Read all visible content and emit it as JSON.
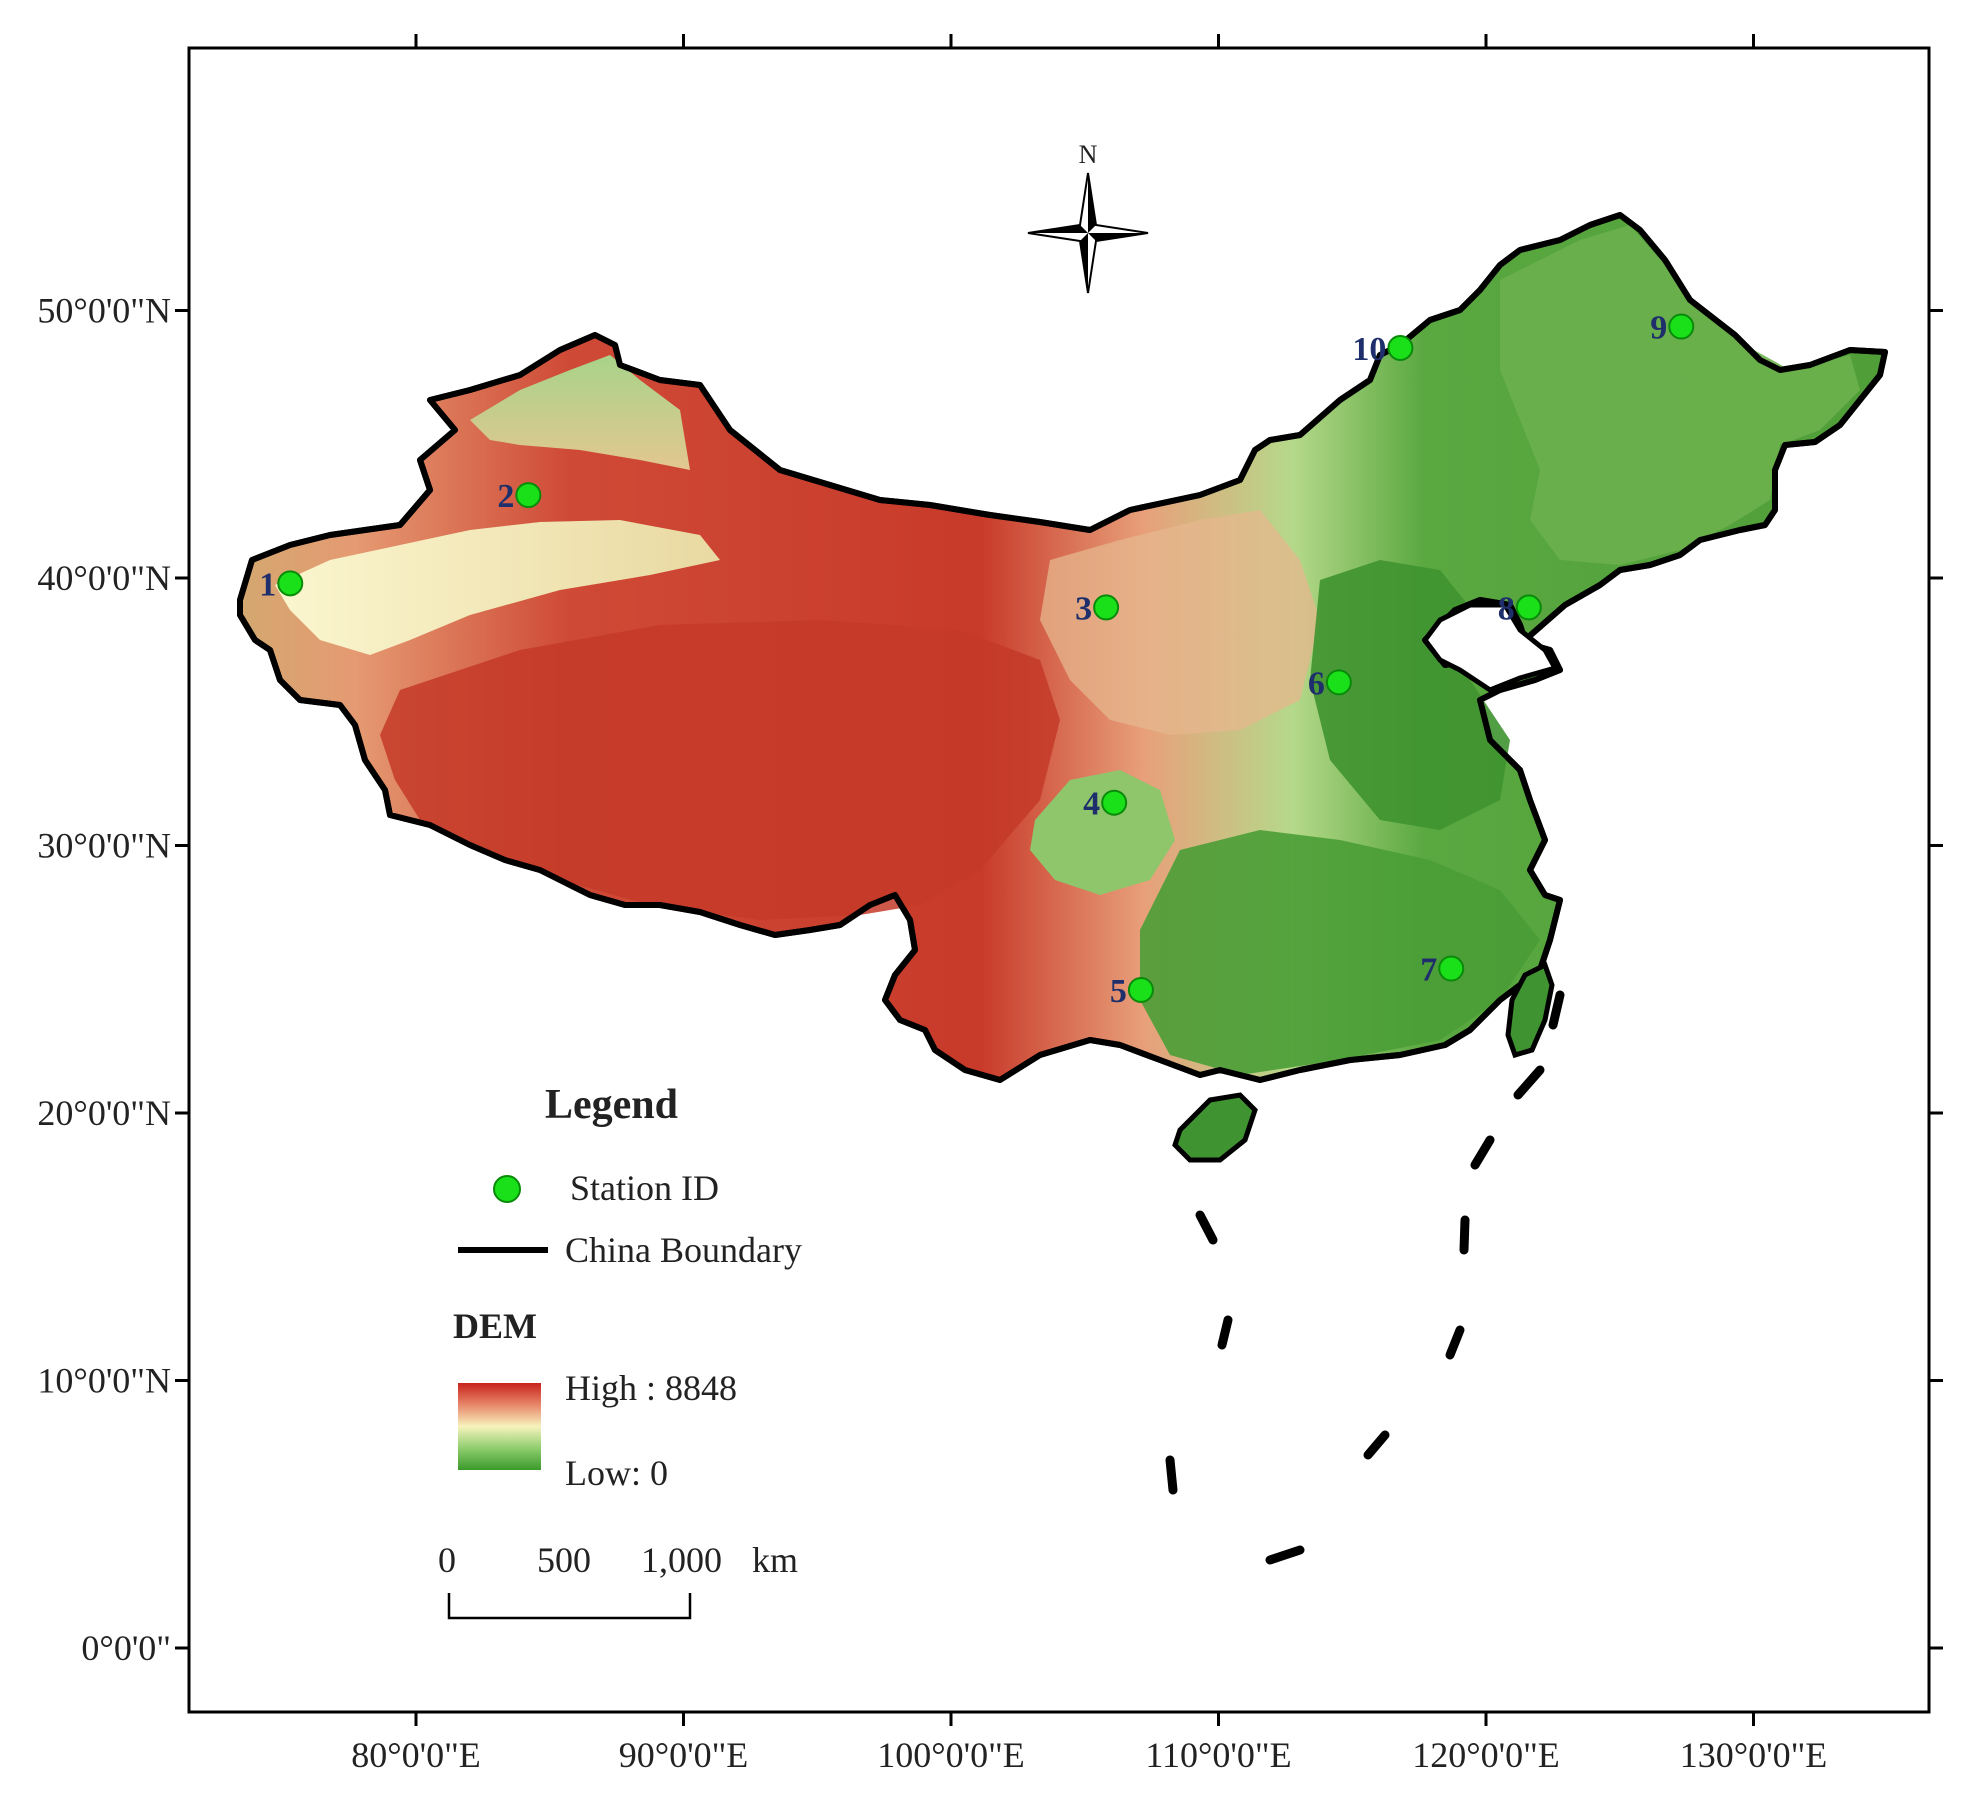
{
  "map": {
    "lon_ticks": [
      "80°0'0\"E",
      "90°0'0\"E",
      "100°0'0\"E",
      "110°0'0\"E",
      "120°0'0\"E",
      "130°0'0\"E"
    ],
    "lat_ticks": [
      "50°0'0\"N",
      "40°0'0\"N",
      "30°0'0\"N",
      "20°0'0\"N",
      "10°0'0\"N",
      "0°0'0\""
    ],
    "north_arrow_label": "N",
    "stations": [
      {
        "id": "1",
        "lon": 75.3,
        "lat": 39.8
      },
      {
        "id": "2",
        "lon": 84.2,
        "lat": 43.1
      },
      {
        "id": "3",
        "lon": 105.8,
        "lat": 38.9
      },
      {
        "id": "4",
        "lon": 106.1,
        "lat": 31.6
      },
      {
        "id": "5",
        "lon": 107.1,
        "lat": 24.6
      },
      {
        "id": "6",
        "lon": 114.5,
        "lat": 36.1
      },
      {
        "id": "7",
        "lon": 118.7,
        "lat": 25.4
      },
      {
        "id": "8",
        "lon": 121.6,
        "lat": 38.9
      },
      {
        "id": "9",
        "lon": 127.3,
        "lat": 49.4
      },
      {
        "id": "10",
        "lon": 116.8,
        "lat": 48.6
      }
    ]
  },
  "legend": {
    "title": "Legend",
    "station_label": "Station ID",
    "boundary_label": "China Boundary",
    "dem_title": "DEM",
    "dem_high": "High : 8848",
    "dem_low": "Low: 0"
  },
  "scale_bar": {
    "labels": [
      "0",
      "500",
      "1,000",
      "km"
    ]
  },
  "colors": {
    "station": "#19e019",
    "boundary": "#000000",
    "dem_high": "#c8241c",
    "dem_mid": "#f5f0b5",
    "dem_low": "#3a9a2a"
  }
}
